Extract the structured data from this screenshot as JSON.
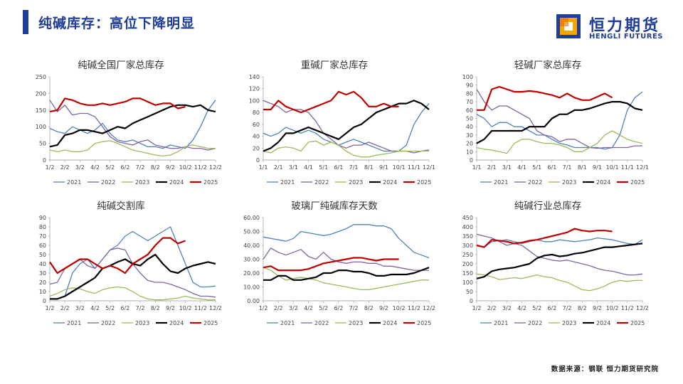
{
  "header": {
    "title": "纯碱库存：高位下降明显"
  },
  "logo": {
    "cn": "恒力期货",
    "en": "HENGLI FUTURES"
  },
  "footer": {
    "source": "数据来源：钢联  恒力期货研究院"
  },
  "colors": {
    "2021": "#4f81bd",
    "2022": "#8064a2",
    "2023": "#9bbb59",
    "2024": "#000000",
    "2025": "#c00000",
    "brand": "#1f3d99"
  },
  "chart_data": [
    {
      "type": "line",
      "title": "纯碱全国厂家总库存",
      "xticks": [
        "1/2",
        "2/2",
        "3/2",
        "4/2",
        "5/2",
        "6/2",
        "7/2",
        "8/2",
        "9/2",
        "10/2",
        "11/2",
        "12/2"
      ],
      "ylim": [
        0,
        250
      ],
      "yticks": [
        0,
        50,
        100,
        150,
        200,
        250
      ],
      "ydecimals": 0,
      "series": [
        {
          "name": "2021",
          "values": [
            95,
            85,
            80,
            100,
            90,
            80,
            90,
            110,
            80,
            60,
            55,
            60,
            50,
            40,
            40,
            35,
            45,
            40,
            35,
            60,
            100,
            150,
            180
          ]
        },
        {
          "name": "2022",
          "values": [
            180,
            145,
            165,
            135,
            140,
            140,
            130,
            100,
            70,
            55,
            50,
            45,
            55,
            60,
            45,
            40,
            35,
            35,
            40,
            35,
            35,
            30,
            35
          ]
        },
        {
          "name": "2023",
          "values": [
            30,
            25,
            30,
            25,
            25,
            30,
            50,
            55,
            58,
            50,
            40,
            30,
            25,
            20,
            15,
            12,
            15,
            25,
            40,
            45,
            40,
            35,
            35
          ]
        },
        {
          "name": "2024",
          "values": [
            40,
            45,
            75,
            80,
            90,
            90,
            85,
            80,
            90,
            100,
            95,
            110,
            120,
            130,
            140,
            150,
            160,
            165,
            165,
            160,
            165,
            150,
            145
          ]
        },
        {
          "name": "2025",
          "values": [
            145,
            150,
            185,
            180,
            170,
            165,
            165,
            170,
            165,
            170,
            175,
            185,
            185,
            175,
            165,
            170,
            170,
            155,
            160
          ]
        }
      ]
    },
    {
      "type": "line",
      "title": "重碱厂家总库存",
      "xticks": [
        "1/1",
        "2/1",
        "3/1",
        "4/1",
        "5/1",
        "6/1",
        "7/1",
        "8/1",
        "9/1",
        "10/1",
        "11/1",
        "12/1"
      ],
      "ylim": [
        0,
        140
      ],
      "yticks": [
        0,
        20,
        40,
        60,
        80,
        100,
        120,
        140
      ],
      "ydecimals": 0,
      "series": [
        {
          "name": "2021",
          "values": [
            45,
            40,
            45,
            55,
            50,
            45,
            50,
            45,
            35,
            30,
            25,
            30,
            35,
            30,
            25,
            20,
            15,
            15,
            15,
            25,
            60,
            80,
            95
          ]
        },
        {
          "name": "2022",
          "values": [
            100,
            95,
            90,
            80,
            85,
            85,
            80,
            65,
            45,
            35,
            25,
            20,
            25,
            25,
            30,
            25,
            20,
            15,
            15,
            15,
            12,
            15,
            17
          ]
        },
        {
          "name": "2023",
          "values": [
            15,
            12,
            20,
            22,
            20,
            15,
            30,
            32,
            25,
            30,
            25,
            15,
            8,
            5,
            5,
            8,
            10,
            12,
            15,
            15,
            15,
            15,
            15
          ]
        },
        {
          "name": "2024",
          "values": [
            15,
            20,
            30,
            45,
            45,
            50,
            55,
            50,
            45,
            40,
            35,
            45,
            55,
            60,
            70,
            80,
            85,
            90,
            95,
            95,
            100,
            95,
            85
          ]
        },
        {
          "name": "2025",
          "values": [
            85,
            85,
            100,
            90,
            85,
            80,
            85,
            90,
            95,
            100,
            115,
            110,
            115,
            105,
            90,
            90,
            95,
            90,
            90
          ]
        }
      ]
    },
    {
      "type": "line",
      "title": "轻碱厂家总库存",
      "xticks": [
        "1/1",
        "2/1",
        "3/1",
        "4/1",
        "5/1",
        "6/1",
        "7/1",
        "8/1",
        "9/1",
        "10/1",
        "11/1",
        "12/1"
      ],
      "ylim": [
        0,
        100
      ],
      "yticks": [
        0,
        10,
        20,
        30,
        40,
        50,
        60,
        70,
        80,
        90,
        100
      ],
      "ydecimals": 0,
      "series": [
        {
          "name": "2021",
          "values": [
            55,
            50,
            40,
            45,
            45,
            40,
            40,
            35,
            30,
            30,
            25,
            20,
            18,
            15,
            15,
            15,
            15,
            13,
            15,
            30,
            60,
            75,
            82
          ]
        },
        {
          "name": "2022",
          "values": [
            85,
            70,
            60,
            65,
            65,
            60,
            55,
            50,
            35,
            30,
            28,
            22,
            25,
            25,
            20,
            15,
            14,
            15,
            15,
            15,
            15,
            17,
            17
          ]
        },
        {
          "name": "2023",
          "values": [
            15,
            13,
            12,
            10,
            8,
            20,
            25,
            25,
            22,
            20,
            20,
            18,
            15,
            10,
            10,
            15,
            20,
            30,
            35,
            30,
            25,
            22,
            20
          ]
        },
        {
          "name": "2024",
          "values": [
            20,
            25,
            35,
            35,
            35,
            35,
            35,
            40,
            40,
            40,
            50,
            55,
            55,
            60,
            60,
            62,
            65,
            68,
            70,
            70,
            68,
            62,
            60
          ]
        },
        {
          "name": "2025",
          "values": [
            60,
            60,
            85,
            88,
            85,
            82,
            82,
            83,
            82,
            80,
            78,
            75,
            80,
            75,
            72,
            72,
            76,
            80,
            75
          ]
        }
      ]
    },
    {
      "type": "line",
      "title": "纯碱交割库",
      "xticks": [
        "1/2",
        "2/2",
        "3/2",
        "4/2",
        "5/2",
        "6/2",
        "7/2",
        "8/2",
        "9/2",
        "10/2",
        "11/2",
        "12/2"
      ],
      "ylim": [
        0,
        90
      ],
      "yticks": [
        0,
        10,
        20,
        30,
        40,
        50,
        60,
        70,
        80,
        90
      ],
      "ydecimals": 0,
      "series": [
        {
          "name": "2021",
          "values": [
            2,
            2,
            5,
            30,
            40,
            45,
            35,
            45,
            55,
            60,
            70,
            75,
            70,
            65,
            70,
            75,
            80,
            60,
            40,
            20,
            15,
            15,
            16
          ]
        },
        {
          "name": "2022",
          "values": [
            18,
            20,
            35,
            40,
            45,
            38,
            35,
            45,
            55,
            57,
            55,
            40,
            30,
            22,
            20,
            20,
            18,
            15,
            12,
            8,
            5,
            5,
            4
          ]
        },
        {
          "name": "2023",
          "values": [
            5,
            8,
            12,
            14,
            13,
            10,
            8,
            12,
            14,
            15,
            14,
            10,
            5,
            2,
            1,
            1,
            2,
            3,
            5,
            3,
            2,
            1,
            1
          ]
        },
        {
          "name": "2024",
          "values": [
            2,
            2,
            5,
            10,
            15,
            20,
            25,
            35,
            38,
            42,
            45,
            40,
            38,
            45,
            50,
            40,
            32,
            30,
            35,
            38,
            40,
            42,
            40
          ]
        },
        {
          "name": "2025",
          "values": [
            42,
            30,
            35,
            40,
            45,
            45,
            40,
            35,
            38,
            35,
            30,
            40,
            45,
            50,
            60,
            68,
            68,
            62,
            65
          ]
        }
      ]
    },
    {
      "type": "line",
      "title": "玻璃厂纯碱库存天数",
      "xticks": [
        "1/2",
        "2/2",
        "3/2",
        "4/2",
        "5/2",
        "6/2",
        "7/2",
        "8/2",
        "9/2",
        "10/2",
        "11/2",
        "12/2"
      ],
      "ylim": [
        0,
        60
      ],
      "yticks": [
        0,
        10,
        20,
        30,
        40,
        50,
        60
      ],
      "ydecimals": 2,
      "series": [
        {
          "name": "2021",
          "values": [
            46,
            45,
            44,
            43,
            45,
            50,
            49,
            48,
            47,
            48,
            50,
            52,
            55,
            55,
            55,
            54,
            54,
            52,
            45,
            40,
            35,
            33,
            31
          ]
        },
        {
          "name": "2022",
          "values": [
            30,
            38,
            35,
            33,
            35,
            37,
            32,
            30,
            35,
            30,
            28,
            27,
            28,
            28,
            27,
            27,
            25,
            25,
            24,
            23,
            22,
            22,
            22
          ]
        },
        {
          "name": "2023",
          "values": [
            24,
            22,
            18,
            15,
            16,
            17,
            16,
            15,
            13,
            12,
            11,
            10,
            9,
            8,
            8,
            9,
            10,
            11,
            12,
            13,
            14,
            15,
            15
          ]
        },
        {
          "name": "2024",
          "values": [
            15,
            15,
            18,
            18,
            15,
            15,
            16,
            17,
            20,
            20,
            22,
            22,
            21,
            21,
            20,
            18,
            18,
            19,
            19,
            19,
            20,
            22,
            24
          ]
        },
        {
          "name": "2025",
          "values": [
            24,
            25,
            22,
            22,
            22,
            22,
            23,
            25,
            27,
            28,
            29,
            30,
            31,
            31,
            30,
            29,
            30,
            30,
            30
          ]
        }
      ]
    },
    {
      "type": "line",
      "title": "纯碱行业总库存",
      "xticks": [
        "1/2",
        "2/2",
        "3/2",
        "4/2",
        "5/2",
        "6/2",
        "7/2",
        "8/2",
        "9/2",
        "10/2",
        "11/2",
        "12/2"
      ],
      "ylim": [
        0,
        450
      ],
      "yticks": [
        0,
        50,
        100,
        150,
        200,
        250,
        300,
        350,
        400,
        450
      ],
      "ydecimals": 0,
      "series": [
        {
          "name": "2021",
          "values": [
            300,
            290,
            320,
            325,
            330,
            320,
            310,
            320,
            330,
            320,
            320,
            330,
            325,
            320,
            325,
            330,
            340,
            335,
            330,
            320,
            310,
            305,
            330
          ]
        },
        {
          "name": "2022",
          "values": [
            360,
            350,
            340,
            320,
            300,
            310,
            300,
            270,
            240,
            230,
            220,
            215,
            220,
            210,
            200,
            190,
            175,
            165,
            160,
            150,
            140,
            140,
            145
          ]
        },
        {
          "name": "2023",
          "values": [
            145,
            140,
            130,
            115,
            120,
            125,
            120,
            130,
            140,
            130,
            125,
            110,
            100,
            80,
            60,
            55,
            65,
            80,
            100,
            110,
            105,
            110,
            110
          ]
        },
        {
          "name": "2024",
          "values": [
            120,
            130,
            160,
            170,
            175,
            180,
            190,
            200,
            230,
            245,
            250,
            240,
            245,
            255,
            260,
            270,
            280,
            290,
            290,
            295,
            300,
            305,
            310
          ]
        },
        {
          "name": "2025",
          "values": [
            300,
            290,
            330,
            325,
            320,
            310,
            315,
            325,
            330,
            340,
            350,
            360,
            370,
            390,
            380,
            375,
            380,
            380,
            375
          ]
        }
      ]
    }
  ]
}
